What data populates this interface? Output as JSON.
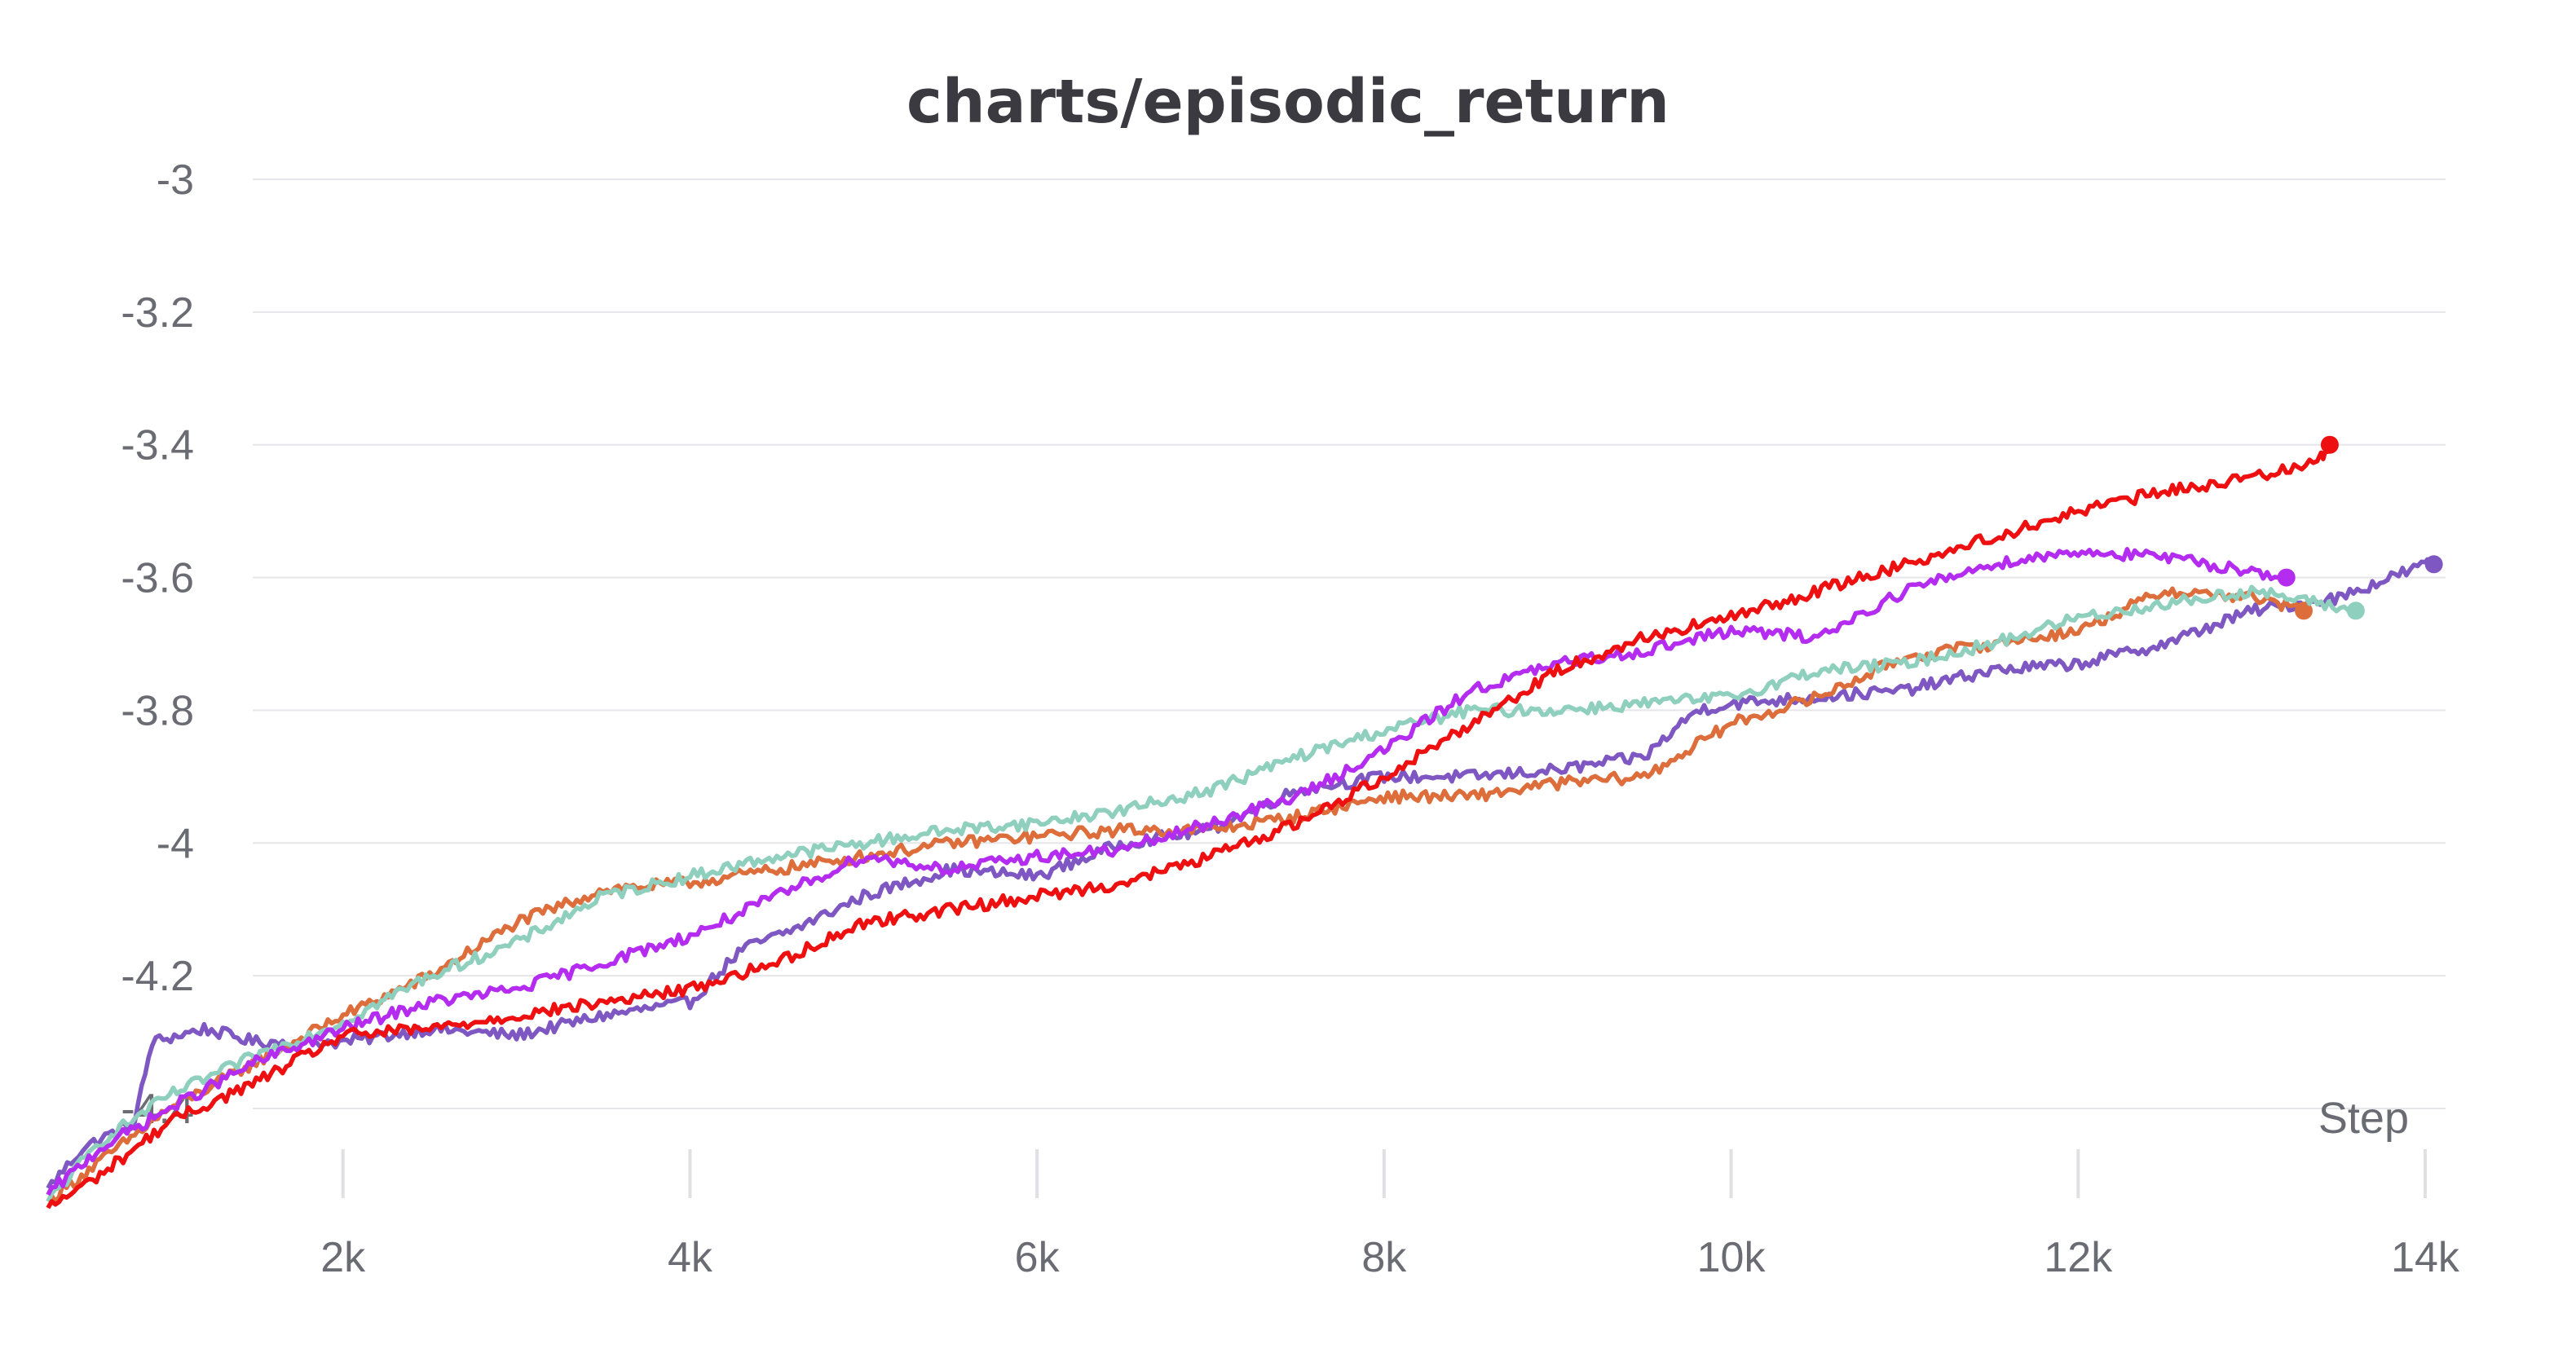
{
  "chart_data": {
    "type": "line",
    "title": "charts/episodic_return",
    "xlabel": "Step",
    "ylabel": "",
    "xlim": [
      0,
      14000
    ],
    "ylim": [
      -4.55,
      -3.0
    ],
    "x_ticks": [
      2000,
      4000,
      6000,
      8000,
      10000,
      12000,
      14000
    ],
    "x_tick_labels": [
      "2k",
      "4k",
      "6k",
      "8k",
      "10k",
      "12k",
      "14k"
    ],
    "y_ticks": [
      -3,
      -3.2,
      -3.4,
      -3.6,
      -3.8,
      -4,
      -4.2,
      -4.4
    ],
    "y_tick_labels": [
      "-3",
      "-3.2",
      "-3.4",
      "-3.6",
      "-3.8",
      "-4",
      "-4.2",
      "-4.4"
    ],
    "grid": true,
    "series": [
      {
        "color": "#7e57c2",
        "x": [
          300,
          500,
          800,
          900,
          1200,
          1500,
          2000,
          2500,
          3000,
          3500,
          4000,
          4300,
          4600,
          5000,
          5500,
          6000,
          6500,
          7000,
          7500,
          8000,
          8500,
          9000,
          9500,
          9800,
          10000,
          10500,
          11000,
          11500,
          12000,
          12500,
          13000,
          13500,
          14000,
          14050
        ],
        "y": [
          -4.52,
          -4.46,
          -4.42,
          -4.3,
          -4.28,
          -4.3,
          -4.3,
          -4.28,
          -4.29,
          -4.26,
          -4.24,
          -4.16,
          -4.13,
          -4.08,
          -4.04,
          -4.05,
          -4.0,
          -3.98,
          -3.92,
          -3.9,
          -3.9,
          -3.89,
          -3.87,
          -3.8,
          -3.79,
          -3.78,
          -3.77,
          -3.74,
          -3.73,
          -3.7,
          -3.65,
          -3.63,
          -3.58,
          -3.58
        ]
      },
      {
        "color": "#dd6e3c",
        "x": [
          300,
          600,
          1000,
          1500,
          2000,
          2500,
          3000,
          3500,
          4000,
          4500,
          5000,
          5500,
          6000,
          6500,
          7000,
          7500,
          8000,
          8500,
          9000,
          9500,
          10000,
          10500,
          11000,
          11500,
          12000,
          12500,
          13000,
          13300
        ],
        "y": [
          -4.54,
          -4.48,
          -4.4,
          -4.33,
          -4.26,
          -4.2,
          -4.12,
          -4.07,
          -4.06,
          -4.04,
          -4.02,
          -4.0,
          -3.99,
          -3.98,
          -3.98,
          -3.96,
          -3.93,
          -3.93,
          -3.91,
          -3.9,
          -3.82,
          -3.78,
          -3.72,
          -3.7,
          -3.68,
          -3.62,
          -3.63,
          -3.65
        ]
      },
      {
        "color": "#8fcfbd",
        "x": [
          300,
          600,
          1000,
          1500,
          2000,
          2500,
          3000,
          3500,
          4000,
          4500,
          5000,
          5500,
          6000,
          6500,
          7000,
          7500,
          8000,
          8500,
          9000,
          9500,
          10000,
          10500,
          11000,
          11500,
          12000,
          12500,
          13000,
          13600
        ],
        "y": [
          -4.54,
          -4.45,
          -4.38,
          -4.32,
          -4.27,
          -4.2,
          -4.15,
          -4.08,
          -4.05,
          -4.02,
          -4.0,
          -3.98,
          -3.97,
          -3.95,
          -3.92,
          -3.87,
          -3.83,
          -3.8,
          -3.8,
          -3.79,
          -3.78,
          -3.74,
          -3.73,
          -3.7,
          -3.66,
          -3.64,
          -3.62,
          -3.65
        ]
      },
      {
        "color": "#b32cf0",
        "x": [
          300,
          600,
          1000,
          1500,
          2000,
          2500,
          3000,
          3500,
          4000,
          4500,
          5000,
          5500,
          6000,
          6500,
          7000,
          7500,
          8000,
          8500,
          9000,
          9500,
          10000,
          10500,
          11000,
          11500,
          12000,
          12500,
          13000,
          13200
        ],
        "y": [
          -4.53,
          -4.46,
          -4.4,
          -4.33,
          -4.28,
          -4.24,
          -4.22,
          -4.18,
          -4.14,
          -4.08,
          -4.02,
          -4.04,
          -4.02,
          -4.01,
          -3.97,
          -3.93,
          -3.86,
          -3.77,
          -3.73,
          -3.71,
          -3.68,
          -3.69,
          -3.62,
          -3.58,
          -3.56,
          -3.57,
          -3.59,
          -3.6
        ]
      },
      {
        "color": "#ee1010",
        "x": [
          300,
          600,
          1000,
          1500,
          2000,
          2500,
          3000,
          3500,
          4000,
          4500,
          5000,
          5500,
          6000,
          6500,
          7000,
          7500,
          8000,
          8500,
          9000,
          9500,
          10000,
          10500,
          11000,
          11500,
          12000,
          12500,
          13000,
          13400,
          13450
        ],
        "y": [
          -4.55,
          -4.5,
          -4.42,
          -4.36,
          -4.29,
          -4.28,
          -4.26,
          -4.24,
          -4.22,
          -4.18,
          -4.12,
          -4.1,
          -4.08,
          -4.06,
          -4.02,
          -3.97,
          -3.9,
          -3.82,
          -3.74,
          -3.69,
          -3.66,
          -3.62,
          -3.58,
          -3.54,
          -3.5,
          -3.47,
          -3.45,
          -3.42,
          -3.4
        ]
      }
    ]
  }
}
